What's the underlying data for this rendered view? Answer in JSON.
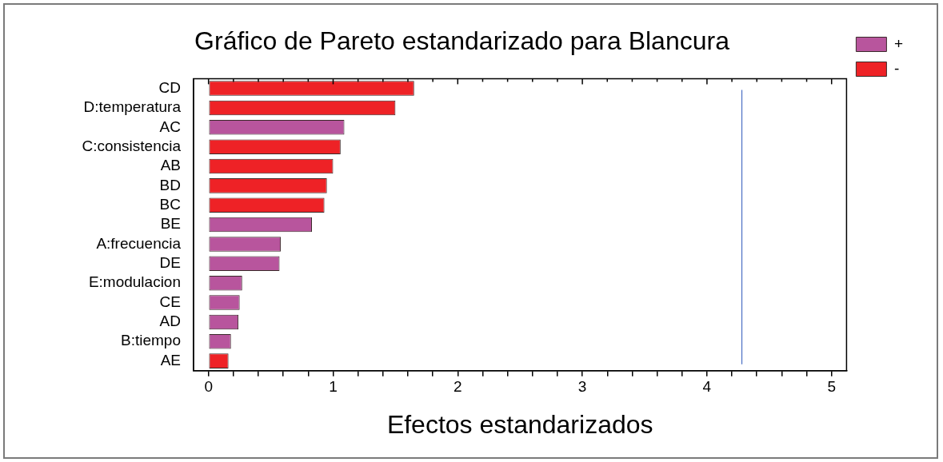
{
  "chart_data": {
    "type": "bar",
    "orientation": "horizontal",
    "title": "Gráfico de Pareto estandarizado para Blancura",
    "xlabel": "Efectos estandarizados",
    "categories": [
      "CD",
      "D:temperatura",
      "AC",
      "C:consistencia",
      "AB",
      "BD",
      "BC",
      "BE",
      "A:frecuencia",
      "DE",
      "E:modulacion",
      "CE",
      "AD",
      "B:tiempo",
      "AE"
    ],
    "series": [
      {
        "name": "+",
        "color": "#b8559d",
        "values": [
          null,
          null,
          1.09,
          null,
          null,
          null,
          null,
          0.83,
          0.58,
          0.57,
          0.27,
          0.25,
          0.24,
          0.18,
          null
        ]
      },
      {
        "name": "-",
        "color": "#ee2226",
        "values": [
          1.65,
          1.5,
          null,
          1.06,
          1.0,
          0.95,
          0.93,
          null,
          null,
          null,
          null,
          null,
          null,
          null,
          0.16
        ]
      }
    ],
    "xlim": [
      -0.12,
      5.12
    ],
    "xticks": [
      0,
      {
        "value": 0.2,
        "label": null
      },
      {
        "value": 0.4,
        "label": null
      },
      {
        "value": 0.6,
        "label": null
      },
      {
        "value": 0.8,
        "label": null
      },
      1,
      {
        "value": 1.2,
        "label": null
      },
      {
        "value": 1.4,
        "label": null
      },
      {
        "value": 1.6,
        "label": null
      },
      {
        "value": 1.8,
        "label": null
      },
      2,
      {
        "value": 2.2,
        "label": null
      },
      {
        "value": 2.4,
        "label": null
      },
      {
        "value": 2.6,
        "label": null
      },
      {
        "value": 2.8,
        "label": null
      },
      3,
      {
        "value": 3.2,
        "label": null
      },
      {
        "value": 3.4,
        "label": null
      },
      {
        "value": 3.6,
        "label": null
      },
      {
        "value": 3.8,
        "label": null
      },
      4,
      {
        "value": 4.2,
        "label": null
      },
      {
        "value": 4.4,
        "label": null
      },
      {
        "value": 4.6,
        "label": null
      },
      {
        "value": 4.8,
        "label": null
      },
      5
    ],
    "ref_lines": [
      {
        "axis": "x",
        "value": 4.28,
        "color": "#4a6fc4"
      }
    ],
    "grid": false,
    "legend": "top right"
  }
}
